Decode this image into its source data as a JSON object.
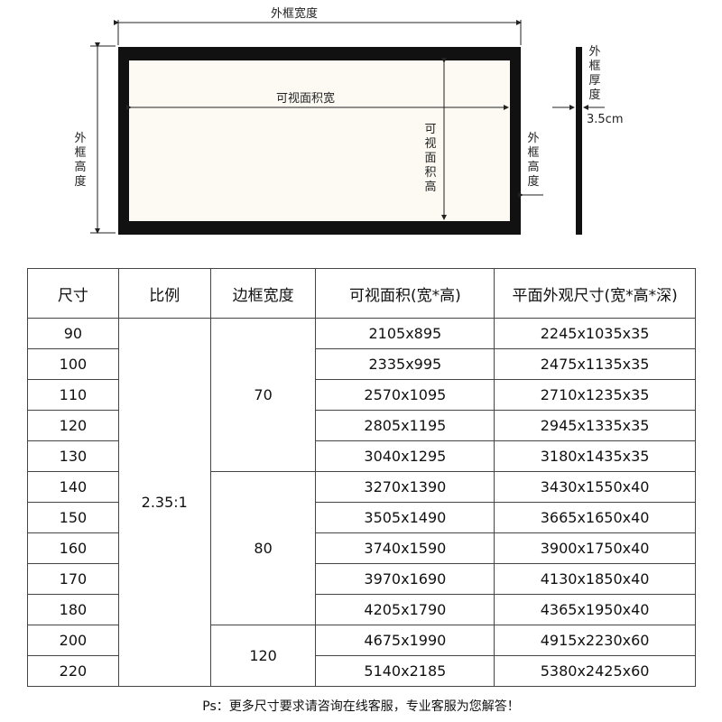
{
  "diagram": {
    "outer_width": "外框宽度",
    "outer_height": "外框高度",
    "visible_width": "可视面积宽",
    "visible_height": "可视面积高",
    "frame_height_side": "外框高度",
    "frame_thickness": "外框厚度",
    "thickness_value": "3.5cm"
  },
  "table": {
    "headers": [
      "尺寸",
      "比例",
      "边框宽度",
      "可视面积(宽*高)",
      "平面外观尺寸(宽*高*深)"
    ],
    "ratio": "2.35:1",
    "frame_groups": [
      {
        "width": "70",
        "rows": 5
      },
      {
        "width": "80",
        "rows": 5
      },
      {
        "width": "120",
        "rows": 2
      }
    ],
    "rows": [
      {
        "size": "90",
        "visible": "2105x895",
        "outer": "2245x1035x35"
      },
      {
        "size": "100",
        "visible": "2335x995",
        "outer": "2475x1135x35"
      },
      {
        "size": "110",
        "visible": "2570x1095",
        "outer": "2710x1235x35"
      },
      {
        "size": "120",
        "visible": "2805x1195",
        "outer": "2945x1335x35"
      },
      {
        "size": "130",
        "visible": "3040x1295",
        "outer": "3180x1435x35"
      },
      {
        "size": "140",
        "visible": "3270x1390",
        "outer": "3430x1550x40"
      },
      {
        "size": "150",
        "visible": "3505x1490",
        "outer": "3665x1650x40"
      },
      {
        "size": "160",
        "visible": "3740x1590",
        "outer": "3900x1750x40"
      },
      {
        "size": "170",
        "visible": "3970x1690",
        "outer": "4130x1850x40"
      },
      {
        "size": "180",
        "visible": "4205x1790",
        "outer": "4365x1950x40"
      },
      {
        "size": "200",
        "visible": "4675x1990",
        "outer": "4915x2230x60"
      },
      {
        "size": "220",
        "visible": "5140x2185",
        "outer": "5380x2425x60"
      }
    ]
  },
  "note": "Ps：更多尺寸要求请咨询在线客服，专业客服为您解答！"
}
